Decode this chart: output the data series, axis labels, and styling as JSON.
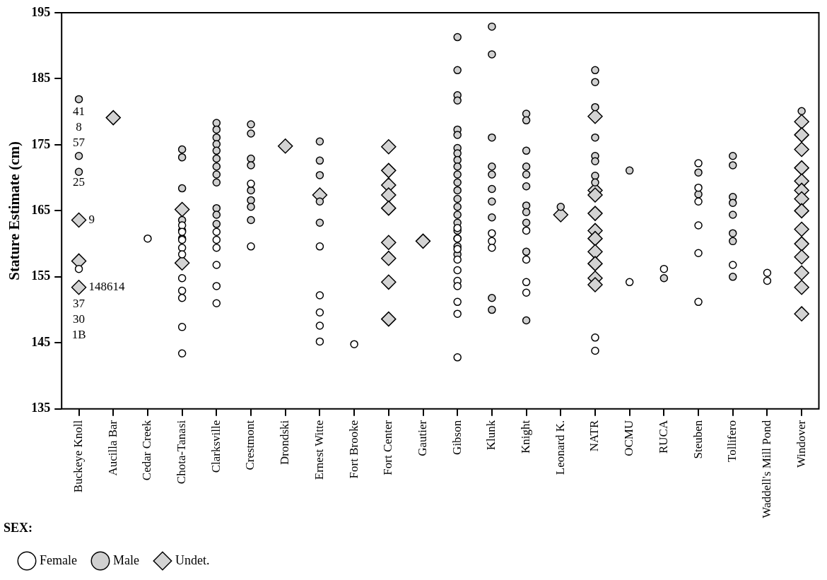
{
  "chart_data": {
    "type": "scatter",
    "ylabel": "Stature Estimate (cm)",
    "legend_title": "SEX:",
    "legend": "bottom left",
    "grid": false,
    "categories": [
      "Buckeye Knoll",
      "Aucilla Bar",
      "Cedar Creek",
      "Chota-Tanasi",
      "Clarksville",
      "Crestmont",
      "Drondski",
      "Ernest Witte",
      "Fort Brooke",
      "Fort Center",
      "Gautier",
      "Gibson",
      "Klunk",
      "Knight",
      "Leonard K.",
      "NATR",
      "OCMU",
      "RUCA",
      "Steuben",
      "Tollifero",
      "Waddell's Mill Pond",
      "Windover"
    ],
    "ylim": [
      135,
      195
    ],
    "yticks": [
      135,
      145,
      155,
      165,
      175,
      185,
      195
    ],
    "series": [
      {
        "name": "Female",
        "marker": "circle",
        "color": "#ffffff",
        "x": [
          "Buckeye Knoll",
          "Cedar Creek",
          "Chota-Tanasi",
          "Chota-Tanasi",
          "Chota-Tanasi",
          "Chota-Tanasi",
          "Chota-Tanasi",
          "Chota-Tanasi",
          "Chota-Tanasi",
          "Chota-Tanasi",
          "Chota-Tanasi",
          "Chota-Tanasi",
          "Clarksville",
          "Clarksville",
          "Clarksville",
          "Clarksville",
          "Clarksville",
          "Clarksville",
          "Crestmont",
          "Crestmont",
          "Ernest Witte",
          "Ernest Witte",
          "Ernest Witte",
          "Ernest Witte",
          "Ernest Witte",
          "Fort Brooke",
          "Gibson",
          "Gibson",
          "Gibson",
          "Gibson",
          "Gibson",
          "Gibson",
          "Gibson",
          "Gibson",
          "Gibson",
          "Gibson",
          "Klunk",
          "Klunk",
          "Klunk",
          "Knight",
          "Knight",
          "Knight",
          "Knight",
          "NATR",
          "NATR",
          "OCMU",
          "RUCA",
          "Steuben",
          "Steuben",
          "Steuben",
          "Steuben",
          "Steuben",
          "Steuben",
          "Tollifero",
          "Waddell's Mill Pond",
          "Waddell's Mill Pond"
        ],
        "values": [
          156.2,
          160.8,
          162.8,
          161.8,
          160.6,
          159.4,
          158.4,
          154.8,
          152.9,
          151.8,
          147.4,
          143.4,
          161.8,
          160.6,
          159.4,
          156.8,
          153.6,
          151.0,
          169.1,
          159.6,
          159.6,
          152.2,
          149.6,
          147.6,
          145.2,
          144.8,
          162.4,
          160.8,
          159.2,
          157.6,
          156.0,
          154.4,
          153.6,
          151.2,
          149.4,
          142.8,
          161.6,
          160.4,
          159.4,
          162.0,
          157.6,
          154.2,
          152.6,
          145.8,
          143.8,
          154.2,
          156.2,
          172.2,
          168.5,
          166.4,
          162.8,
          158.6,
          151.2,
          156.8,
          155.6,
          154.4
        ]
      },
      {
        "name": "Male",
        "marker": "circle",
        "color": "#d0d0d0",
        "x": [
          "Buckeye Knoll",
          "Buckeye Knoll",
          "Buckeye Knoll",
          "Chota-Tanasi",
          "Chota-Tanasi",
          "Chota-Tanasi",
          "Chota-Tanasi",
          "Chota-Tanasi",
          "Chota-Tanasi",
          "Clarksville",
          "Clarksville",
          "Clarksville",
          "Clarksville",
          "Clarksville",
          "Clarksville",
          "Clarksville",
          "Clarksville",
          "Clarksville",
          "Clarksville",
          "Clarksville",
          "Clarksville",
          "Crestmont",
          "Crestmont",
          "Crestmont",
          "Crestmont",
          "Crestmont",
          "Crestmont",
          "Crestmont",
          "Crestmont",
          "Ernest Witte",
          "Ernest Witte",
          "Ernest Witte",
          "Ernest Witte",
          "Ernest Witte",
          "Gibson",
          "Gibson",
          "Gibson",
          "Gibson",
          "Gibson",
          "Gibson",
          "Gibson",
          "Gibson",
          "Gibson",
          "Gibson",
          "Gibson",
          "Gibson",
          "Gibson",
          "Gibson",
          "Gibson",
          "Gibson",
          "Gibson",
          "Gibson",
          "Gibson",
          "Gibson",
          "Gibson",
          "Klunk",
          "Klunk",
          "Klunk",
          "Klunk",
          "Klunk",
          "Klunk",
          "Klunk",
          "Klunk",
          "Klunk",
          "Klunk",
          "Knight",
          "Knight",
          "Knight",
          "Knight",
          "Knight",
          "Knight",
          "Knight",
          "Knight",
          "Knight",
          "Knight",
          "Knight",
          "Leonard K.",
          "NATR",
          "NATR",
          "NATR",
          "NATR",
          "NATR",
          "NATR",
          "NATR",
          "NATR",
          "OCMU",
          "RUCA",
          "Steuben",
          "Steuben",
          "Tollifero",
          "Tollifero",
          "Tollifero",
          "Tollifero",
          "Tollifero",
          "Tollifero",
          "Tollifero",
          "Tollifero",
          "Windover"
        ],
        "values": [
          181.9,
          173.3,
          170.9,
          174.3,
          173.1,
          168.4,
          163.6,
          162.0,
          160.8,
          178.3,
          177.3,
          176.1,
          175.1,
          174.1,
          172.9,
          171.7,
          170.5,
          169.3,
          165.4,
          164.4,
          163.0,
          178.1,
          176.7,
          172.9,
          171.9,
          168.1,
          166.6,
          165.6,
          163.6,
          175.5,
          172.6,
          170.4,
          166.4,
          163.2,
          191.3,
          186.3,
          182.5,
          181.7,
          177.3,
          176.5,
          174.5,
          173.7,
          172.7,
          171.7,
          170.5,
          169.3,
          168.1,
          166.8,
          165.6,
          164.4,
          163.2,
          162.0,
          160.8,
          159.6,
          158.4,
          192.9,
          188.7,
          176.1,
          171.7,
          170.5,
          168.3,
          166.4,
          164.0,
          151.8,
          150.0,
          179.7,
          178.7,
          174.1,
          171.7,
          170.5,
          168.7,
          165.8,
          164.8,
          163.2,
          158.8,
          148.4,
          165.6,
          186.3,
          184.5,
          180.7,
          176.1,
          173.3,
          172.5,
          170.3,
          169.3,
          171.1,
          154.8,
          170.8,
          167.5,
          173.3,
          171.9,
          167.1,
          166.2,
          164.4,
          161.6,
          160.4,
          155.0,
          180.1
        ]
      },
      {
        "name": "Undet.",
        "marker": "diamond",
        "color": "#d3d3d3",
        "x": [
          "Buckeye Knoll",
          "Buckeye Knoll",
          "Buckeye Knoll",
          "Aucilla Bar",
          "Chota-Tanasi",
          "Chota-Tanasi",
          "Drondski",
          "Ernest Witte",
          "Fort Center",
          "Fort Center",
          "Fort Center",
          "Fort Center",
          "Fort Center",
          "Fort Center",
          "Fort Center",
          "Fort Center",
          "Fort Center",
          "Gautier",
          "Leonard K.",
          "NATR",
          "NATR",
          "NATR",
          "NATR",
          "NATR",
          "NATR",
          "NATR",
          "NATR",
          "NATR",
          "NATR",
          "Windover",
          "Windover",
          "Windover",
          "Windover",
          "Windover",
          "Windover",
          "Windover",
          "Windover",
          "Windover",
          "Windover",
          "Windover",
          "Windover",
          "Windover",
          "Windover"
        ],
        "values": [
          163.6,
          157.4,
          153.4,
          179.1,
          165.2,
          157.1,
          174.8,
          167.4,
          174.7,
          171.1,
          168.9,
          167.4,
          165.4,
          160.2,
          157.8,
          154.2,
          148.6,
          160.4,
          164.4,
          179.3,
          168.1,
          167.4,
          164.6,
          162.0,
          160.8,
          158.8,
          157.0,
          154.8,
          153.8,
          178.5,
          176.5,
          174.3,
          171.5,
          169.5,
          168.1,
          166.8,
          165.0,
          162.2,
          160.0,
          158.0,
          155.6,
          153.4,
          149.4
        ]
      }
    ],
    "annotations": [
      "41",
      "8",
      "57",
      "25",
      {
        "text": "9",
        "x": "Buckeye Knoll",
        "y": 163.6
      },
      {
        "text": "148614",
        "x": "Buckeye Knoll",
        "y": 153.4
      },
      "37",
      "30",
      "1B"
    ]
  }
}
